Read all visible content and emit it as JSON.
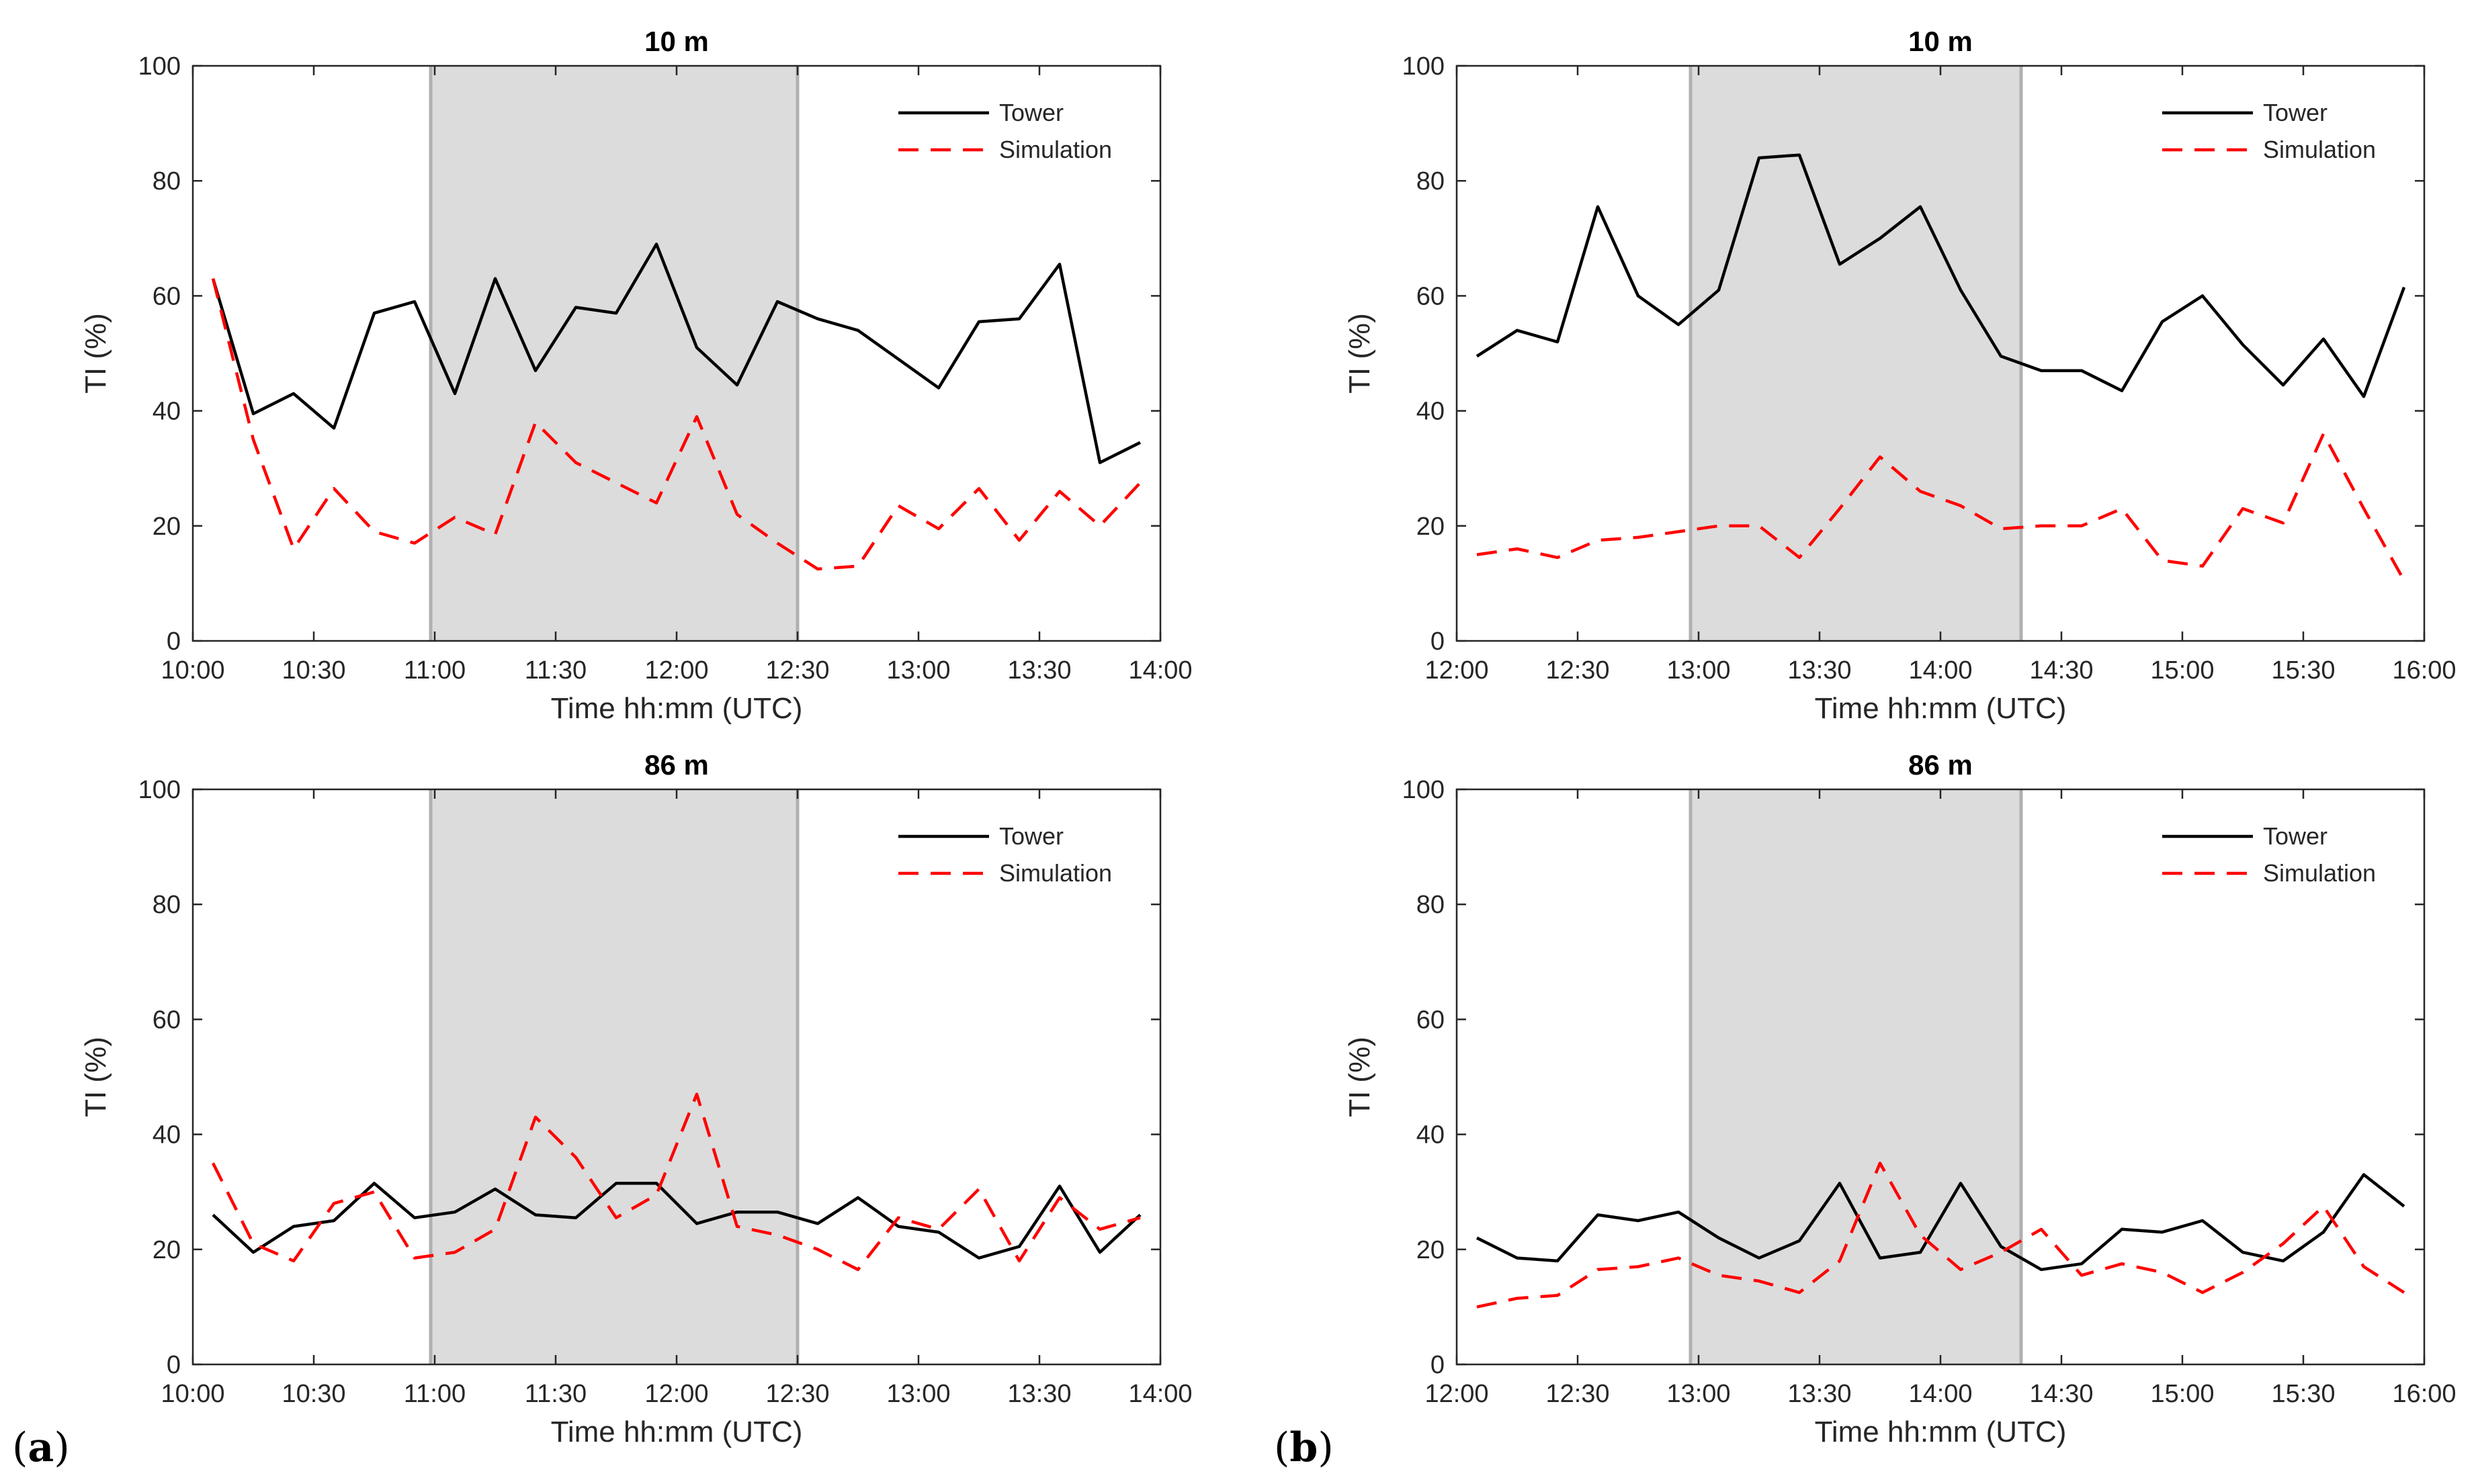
{
  "panel_labels": {
    "a": {
      "open": "(",
      "letter": "a",
      "close": ")"
    },
    "b": {
      "open": "(",
      "letter": "b",
      "close": ")"
    }
  },
  "colors": {
    "tower": "#000000",
    "simulation": "#ff0000",
    "shade": "#dcdcdc",
    "shade_edge": "#b0b0b0",
    "axis": "#262626"
  },
  "chart_data": [
    {
      "id": "a-10m",
      "panel": "a",
      "type": "line",
      "title": "10 m",
      "xlabel": "Time hh:mm (UTC)",
      "ylabel": "TI (%)",
      "xlim": [
        "10:00",
        "14:00"
      ],
      "ylim": [
        0,
        100
      ],
      "xticks": [
        "10:00",
        "10:30",
        "11:00",
        "11:30",
        "12:00",
        "12:30",
        "13:00",
        "13:30",
        "14:00"
      ],
      "yticks": [
        "0",
        "20",
        "40",
        "60",
        "80",
        "100"
      ],
      "shaded_interval": [
        "10:59",
        "12:30"
      ],
      "legend": {
        "position": "top-right",
        "entries": [
          "Tower",
          "Simulation"
        ]
      },
      "series": [
        {
          "name": "Tower",
          "style": "solid",
          "x": [
            "10:05",
            "10:15",
            "10:25",
            "10:35",
            "10:45",
            "10:55",
            "11:05",
            "11:15",
            "11:25",
            "11:35",
            "11:45",
            "11:55",
            "12:05",
            "12:15",
            "12:25",
            "12:35",
            "12:45",
            "12:55",
            "13:05",
            "13:15",
            "13:25",
            "13:35",
            "13:45",
            "13:55"
          ],
          "values": [
            63,
            39.5,
            43,
            37,
            57,
            59,
            43,
            63,
            47,
            58,
            57,
            69,
            51,
            44.5,
            59,
            56,
            54,
            49,
            44,
            55.5,
            56,
            65.5,
            31,
            34.5
          ]
        },
        {
          "name": "Simulation",
          "style": "dashed",
          "x": [
            "10:05",
            "10:15",
            "10:25",
            "10:35",
            "10:45",
            "10:55",
            "11:05",
            "11:15",
            "11:25",
            "11:35",
            "11:45",
            "11:55",
            "12:05",
            "12:15",
            "12:25",
            "12:35",
            "12:45",
            "12:55",
            "13:05",
            "13:15",
            "13:25",
            "13:35",
            "13:45",
            "13:55"
          ],
          "values": [
            63,
            35,
            16,
            26.5,
            19,
            17,
            21.5,
            18.5,
            38,
            31,
            27.5,
            24,
            39,
            22,
            17,
            12.5,
            13,
            23.5,
            19.5,
            26.5,
            17.5,
            26,
            20,
            27.5
          ]
        }
      ]
    },
    {
      "id": "b-10m",
      "panel": "b",
      "type": "line",
      "title": "10 m",
      "xlabel": "Time hh:mm (UTC)",
      "ylabel": "TI (%)",
      "xlim": [
        "12:00",
        "16:00"
      ],
      "ylim": [
        0,
        100
      ],
      "xticks": [
        "12:00",
        "12:30",
        "13:00",
        "13:30",
        "14:00",
        "14:30",
        "15:00",
        "15:30",
        "16:00"
      ],
      "yticks": [
        "0",
        "20",
        "40",
        "60",
        "80",
        "100"
      ],
      "shaded_interval": [
        "12:58",
        "14:20"
      ],
      "legend": {
        "position": "top-right",
        "entries": [
          "Tower",
          "Simulation"
        ]
      },
      "series": [
        {
          "name": "Tower",
          "style": "solid",
          "x": [
            "12:05",
            "12:15",
            "12:25",
            "12:35",
            "12:45",
            "12:55",
            "13:05",
            "13:15",
            "13:25",
            "13:35",
            "13:45",
            "13:55",
            "14:05",
            "14:15",
            "14:25",
            "14:35",
            "14:45",
            "14:55",
            "15:05",
            "15:15",
            "15:25",
            "15:35",
            "15:45",
            "15:55"
          ],
          "values": [
            49.5,
            54,
            52,
            75.5,
            60,
            55,
            61,
            84,
            84.5,
            65.5,
            70,
            75.5,
            61,
            49.5,
            47,
            47,
            43.5,
            55.5,
            60,
            51.5,
            44.5,
            52.5,
            42.5,
            61.5
          ]
        },
        {
          "name": "Simulation",
          "style": "dashed",
          "x": [
            "12:05",
            "12:15",
            "12:25",
            "12:35",
            "12:45",
            "12:55",
            "13:05",
            "13:15",
            "13:25",
            "13:35",
            "13:45",
            "13:55",
            "14:05",
            "14:15",
            "14:25",
            "14:35",
            "14:45",
            "14:55",
            "15:05",
            "15:15",
            "15:25",
            "15:35",
            "15:45",
            "15:55"
          ],
          "values": [
            15,
            16,
            14.5,
            17.5,
            18,
            19,
            20,
            20,
            14.5,
            23,
            32,
            26,
            23.5,
            19.5,
            20,
            20,
            23,
            14,
            13,
            23,
            20.5,
            36,
            23,
            10.5
          ]
        }
      ]
    },
    {
      "id": "a-86m",
      "panel": "a",
      "type": "line",
      "title": "86 m",
      "xlabel": "Time hh:mm (UTC)",
      "ylabel": "TI (%)",
      "xlim": [
        "10:00",
        "14:00"
      ],
      "ylim": [
        0,
        100
      ],
      "xticks": [
        "10:00",
        "10:30",
        "11:00",
        "11:30",
        "12:00",
        "12:30",
        "13:00",
        "13:30",
        "14:00"
      ],
      "yticks": [
        "0",
        "20",
        "40",
        "60",
        "80",
        "100"
      ],
      "shaded_interval": [
        "10:59",
        "12:30"
      ],
      "legend": {
        "position": "top-right",
        "entries": [
          "Tower",
          "Simulation"
        ]
      },
      "series": [
        {
          "name": "Tower",
          "style": "solid",
          "x": [
            "10:05",
            "10:15",
            "10:25",
            "10:35",
            "10:45",
            "10:55",
            "11:05",
            "11:15",
            "11:25",
            "11:35",
            "11:45",
            "11:55",
            "12:05",
            "12:15",
            "12:25",
            "12:35",
            "12:45",
            "12:55",
            "13:05",
            "13:15",
            "13:25",
            "13:35",
            "13:45",
            "13:55"
          ],
          "values": [
            26,
            19.5,
            24,
            25,
            31.5,
            25.5,
            26.5,
            30.5,
            26,
            25.5,
            31.5,
            31.5,
            24.5,
            26.5,
            26.5,
            24.5,
            29,
            24,
            23,
            18.5,
            20.5,
            31,
            19.5,
            26
          ]
        },
        {
          "name": "Simulation",
          "style": "dashed",
          "x": [
            "10:05",
            "10:15",
            "10:25",
            "10:35",
            "10:45",
            "10:55",
            "11:05",
            "11:15",
            "11:25",
            "11:35",
            "11:45",
            "11:55",
            "12:05",
            "12:15",
            "12:25",
            "12:35",
            "12:45",
            "12:55",
            "13:05",
            "13:15",
            "13:25",
            "13:35",
            "13:45",
            "13:55"
          ],
          "values": [
            35,
            21,
            18,
            28,
            30,
            18.5,
            19.5,
            23.5,
            43,
            36,
            25.5,
            29.5,
            47,
            24,
            22.5,
            20,
            16.5,
            25.5,
            23.5,
            30.5,
            18,
            29,
            23.5,
            25.5
          ]
        }
      ]
    },
    {
      "id": "b-86m",
      "panel": "b",
      "type": "line",
      "title": "86 m",
      "xlabel": "Time hh:mm (UTC)",
      "ylabel": "TI (%)",
      "xlim": [
        "12:00",
        "16:00"
      ],
      "ylim": [
        0,
        100
      ],
      "xticks": [
        "12:00",
        "12:30",
        "13:00",
        "13:30",
        "14:00",
        "14:30",
        "15:00",
        "15:30",
        "16:00"
      ],
      "yticks": [
        "0",
        "20",
        "40",
        "60",
        "80",
        "100"
      ],
      "shaded_interval": [
        "12:58",
        "14:20"
      ],
      "legend": {
        "position": "top-right",
        "entries": [
          "Tower",
          "Simulation"
        ]
      },
      "series": [
        {
          "name": "Tower",
          "style": "solid",
          "x": [
            "12:05",
            "12:15",
            "12:25",
            "12:35",
            "12:45",
            "12:55",
            "13:05",
            "13:15",
            "13:25",
            "13:35",
            "13:45",
            "13:55",
            "14:05",
            "14:15",
            "14:25",
            "14:35",
            "14:45",
            "14:55",
            "15:05",
            "15:15",
            "15:25",
            "15:35",
            "15:45",
            "15:55"
          ],
          "values": [
            22,
            18.5,
            18,
            26,
            25,
            26.5,
            22,
            18.5,
            21.5,
            31.5,
            18.5,
            19.5,
            31.5,
            20.5,
            16.5,
            17.5,
            23.5,
            23,
            25,
            19.5,
            18,
            23,
            33,
            27.5
          ]
        },
        {
          "name": "Simulation",
          "style": "dashed",
          "x": [
            "12:05",
            "12:15",
            "12:25",
            "12:35",
            "12:45",
            "12:55",
            "13:05",
            "13:15",
            "13:25",
            "13:35",
            "13:45",
            "13:55",
            "14:05",
            "14:15",
            "14:25",
            "14:35",
            "14:45",
            "14:55",
            "15:05",
            "15:15",
            "15:25",
            "15:35",
            "15:45",
            "15:55"
          ],
          "values": [
            10,
            11.5,
            12,
            16.5,
            17,
            18.5,
            15.5,
            14.5,
            12.5,
            18,
            35,
            22.5,
            16.5,
            19.5,
            23.5,
            15.5,
            17.5,
            16,
            12.5,
            16,
            21,
            27.5,
            17,
            12.5
          ]
        }
      ]
    }
  ]
}
